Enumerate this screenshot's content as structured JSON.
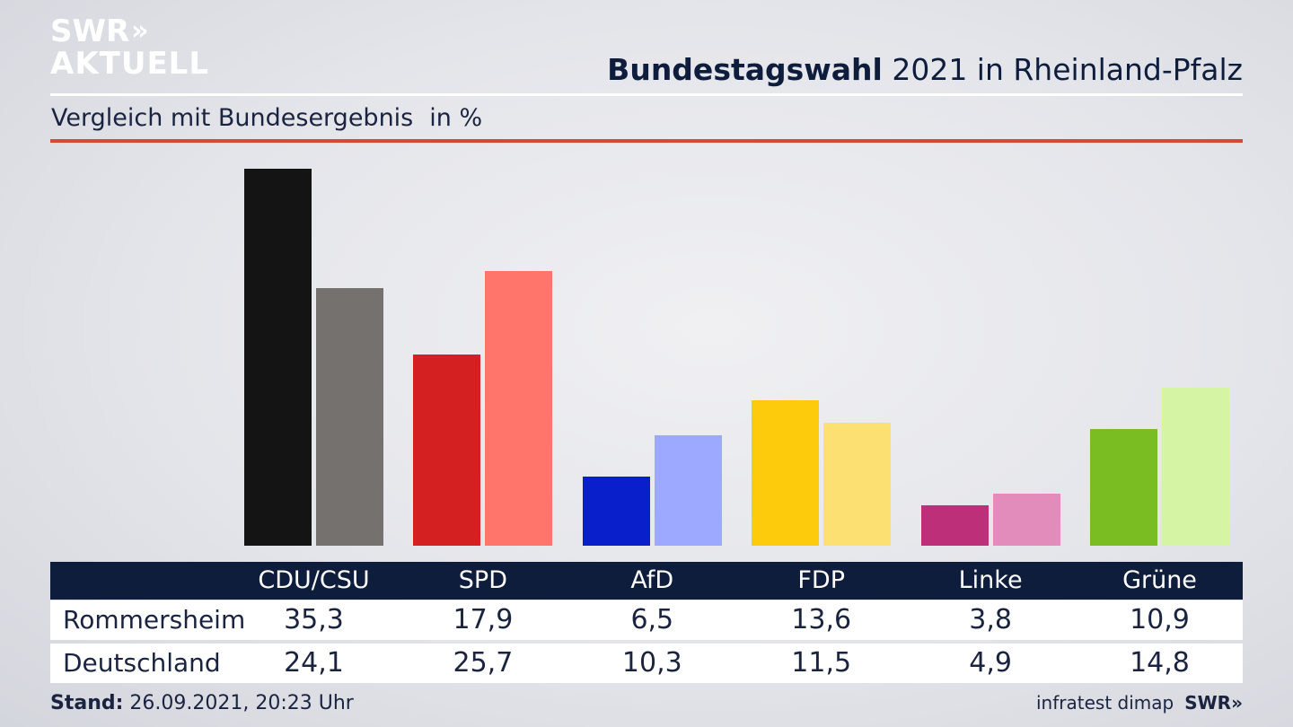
{
  "logo": {
    "line1": "SWR",
    "chevrons": "»",
    "line2": "AKTUELL"
  },
  "header": {
    "title_bold": "Bundestagswahl",
    "title_rest": "2021 in Rheinland-Pfalz"
  },
  "subtitle": {
    "text": "Vergleich mit Bundesergebnis",
    "unit": "in %"
  },
  "chart_data": {
    "type": "bar",
    "categories": [
      "CDU/CSU",
      "SPD",
      "AfD",
      "FDP",
      "Linke",
      "Grüne"
    ],
    "series": [
      {
        "name": "Rommersheim",
        "values": [
          35.3,
          17.9,
          6.5,
          13.6,
          3.8,
          10.9
        ],
        "display": [
          "35,3",
          "17,9",
          "6,5",
          "13,6",
          "3,8",
          "10,9"
        ],
        "colors": [
          "#141414",
          "#d42020",
          "#0a1fcc",
          "#fecb0c",
          "#bd2f78",
          "#7abd22"
        ]
      },
      {
        "name": "Deutschland",
        "values": [
          24.1,
          25.7,
          10.3,
          11.5,
          4.9,
          14.8
        ],
        "display": [
          "24,1",
          "25,7",
          "10,3",
          "11,5",
          "4,9",
          "14,8"
        ],
        "colors": [
          "#74716f",
          "#ff756b",
          "#9da9ff",
          "#fde072",
          "#e18cba",
          "#d5f5a5"
        ]
      }
    ],
    "ylim": [
      0,
      35.3
    ],
    "grid": false
  },
  "footer": {
    "stand_label": "Stand:",
    "stand_value": "26.09.2021, 20:23 Uhr"
  },
  "source": {
    "text": "infratest dimap",
    "brand": "SWR»"
  }
}
